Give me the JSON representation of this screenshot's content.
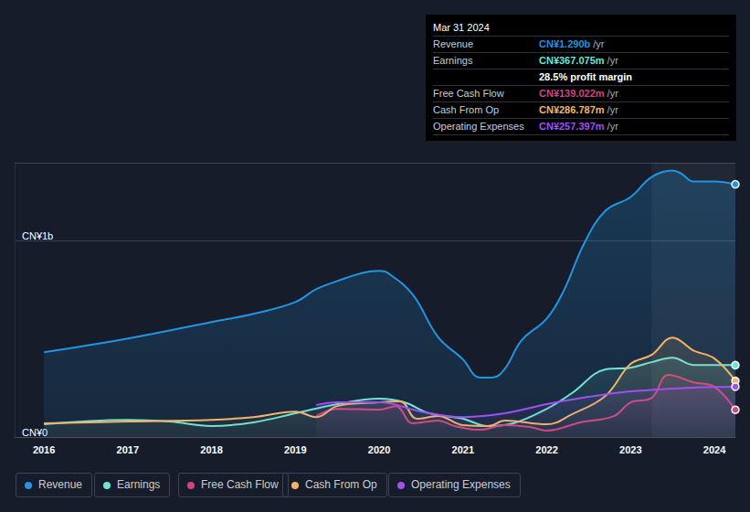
{
  "chart_data": {
    "type": "line",
    "xlim": [
      2015.65,
      2024.25
    ],
    "xticks": [
      2016,
      2017,
      2018,
      2019,
      2020,
      2021,
      2022,
      2023,
      2024
    ],
    "ylim": [
      0,
      1400
    ],
    "yticks": [
      {
        "value": 0,
        "label": "CN¥0"
      },
      {
        "value": 1000,
        "label": "CN¥1b"
      }
    ],
    "grid": true,
    "shaded_period": [
      2023.25,
      2024.25
    ],
    "series": [
      {
        "name": "Revenue",
        "color": "#2394df",
        "type": "area",
        "x": [
          2016,
          2017,
          2018,
          2018.5,
          2019,
          2019.25,
          2019.5,
          2019.8,
          2020,
          2020.1,
          2020.4,
          2020.7,
          2021,
          2021.2,
          2021.35,
          2021.5,
          2021.7,
          2022,
          2022.2,
          2022.45,
          2022.7,
          2023,
          2023.25,
          2023.5,
          2023.6,
          2023.75,
          2024,
          2024.25
        ],
        "values": [
          433,
          503,
          587,
          629,
          689,
          755,
          796,
          838,
          848,
          838,
          727,
          512,
          396,
          303,
          303,
          349,
          494,
          605,
          745,
          992,
          1155,
          1225,
          1327,
          1360,
          1346,
          1304,
          1304,
          1290
        ]
      },
      {
        "name": "Earnings",
        "color": "#6ce5d2",
        "x": [
          2016,
          2017,
          2017.5,
          2018,
          2018.5,
          2019,
          2019.5,
          2020,
          2020.3,
          2020.6,
          2021,
          2021.3,
          2021.6,
          2022,
          2022.3,
          2022.7,
          2023,
          2023.25,
          2023.5,
          2023.75,
          2024.25
        ],
        "values": [
          65,
          88,
          79,
          56,
          75,
          121,
          168,
          196,
          177,
          121,
          93,
          56,
          70,
          144,
          224,
          345,
          354,
          382,
          405,
          368,
          367
        ]
      },
      {
        "name": "Free Cash Flow",
        "color": "#d0457b",
        "x": [
          2019.25,
          2019.5,
          2020,
          2020.2,
          2020.4,
          2020.7,
          2020.9,
          2021.2,
          2021.5,
          2021.8,
          2022,
          2022.4,
          2022.8,
          2023,
          2023.25,
          2023.45,
          2023.75,
          2024,
          2024.25
        ],
        "values": [
          107,
          144,
          140,
          158,
          70,
          84,
          56,
          37,
          61,
          51,
          33,
          75,
          107,
          177,
          200,
          317,
          279,
          256,
          139
        ]
      },
      {
        "name": "Cash From Op",
        "color": "#f2b36a",
        "x": [
          2016,
          2017,
          2018,
          2018.5,
          2019,
          2019.25,
          2019.5,
          2020,
          2020.25,
          2020.45,
          2020.7,
          2021,
          2021.3,
          2021.5,
          2022,
          2022.3,
          2022.7,
          2023,
          2023.25,
          2023.5,
          2023.75,
          2024,
          2024.25
        ],
        "values": [
          70,
          79,
          88,
          102,
          130,
          102,
          158,
          177,
          182,
          93,
          107,
          61,
          56,
          84,
          65,
          116,
          210,
          373,
          419,
          508,
          442,
          401,
          287
        ]
      },
      {
        "name": "Operating Expenses",
        "color": "#a24ff0",
        "x": [
          2019.25,
          2019.5,
          2020,
          2020.5,
          2021,
          2021.5,
          2022,
          2022.5,
          2023,
          2023.5,
          2024,
          2024.25
        ],
        "values": [
          163,
          177,
          177,
          130,
          102,
          121,
          168,
          205,
          233,
          247,
          256,
          257
        ]
      }
    ],
    "panel": {
      "title": "Mar 31 2024",
      "rows": [
        {
          "label": "Revenue",
          "value": "CN¥1.290b",
          "unit": "/yr"
        },
        {
          "label": "Earnings",
          "value": "CN¥367.075m",
          "unit": "/yr"
        },
        {
          "text": "28.5% profit margin"
        },
        {
          "label": "Free Cash Flow",
          "value": "CN¥139.022m",
          "unit": "/yr"
        },
        {
          "label": "Cash From Op",
          "value": "CN¥286.787m",
          "unit": "/yr"
        },
        {
          "label": "Operating Expenses",
          "value": "CN¥257.397m",
          "unit": "/yr"
        }
      ]
    }
  }
}
